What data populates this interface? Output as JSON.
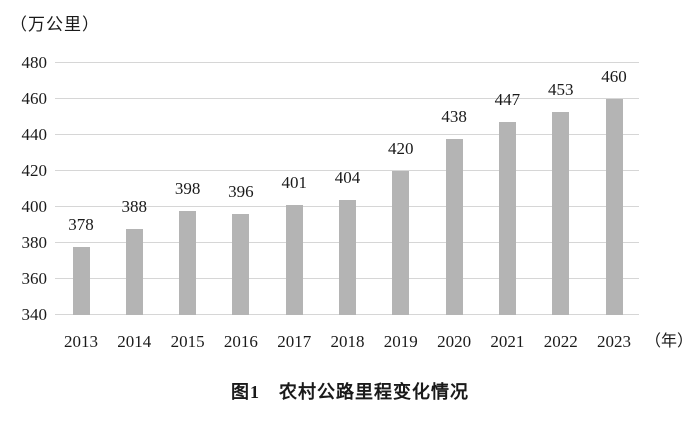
{
  "chart_data": {
    "type": "bar",
    "title": "图1　农村公路里程变化情况",
    "y_unit_label": "（万公里）",
    "x_unit_label": "（年）",
    "categories": [
      "2013",
      "2014",
      "2015",
      "2016",
      "2017",
      "2018",
      "2019",
      "2020",
      "2021",
      "2022",
      "2023"
    ],
    "values": [
      378,
      388,
      398,
      396,
      401,
      404,
      420,
      438,
      447,
      453,
      460
    ],
    "yticks": [
      340,
      360,
      380,
      400,
      420,
      440,
      460,
      480
    ],
    "ylim": [
      340,
      480
    ],
    "grid": true,
    "legend_position": "none",
    "bar_color": "#b4b4b4",
    "grid_color": "#d6d6d6",
    "text_color": "#1a1a1a"
  }
}
